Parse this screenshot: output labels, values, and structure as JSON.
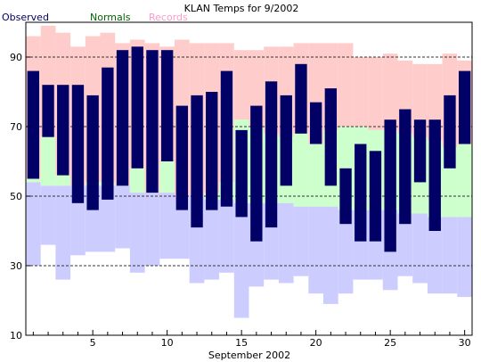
{
  "chart_data": {
    "type": "bar",
    "title": "KLAN Temps for 9/2002",
    "xlabel": "September 2002",
    "ylabel": "",
    "legend": {
      "placement": "top-left",
      "items": [
        {
          "name": "Observed",
          "color": "#000066"
        },
        {
          "name": "Normals",
          "color": "#006600"
        },
        {
          "name": "Records",
          "color": "#ff99cc"
        }
      ]
    },
    "xlim": [
      0.5,
      30.5
    ],
    "ylim": [
      10,
      100
    ],
    "x_ticks": [
      5,
      10,
      15,
      20,
      25,
      30
    ],
    "y_ticks": [
      10,
      30,
      50,
      70,
      90
    ],
    "dashed_gridlines": [
      30,
      50,
      70,
      90
    ],
    "colors": {
      "records": "#ffcccc",
      "normals": "#ccffcc",
      "lower": "#ccccff",
      "observed": "#000066",
      "grid": "#333333"
    },
    "days": [
      1,
      2,
      3,
      4,
      5,
      6,
      7,
      8,
      9,
      10,
      11,
      12,
      13,
      14,
      15,
      16,
      17,
      18,
      19,
      20,
      21,
      22,
      23,
      24,
      25,
      26,
      27,
      28,
      29,
      30
    ],
    "series": [
      {
        "name": "Record High",
        "values": [
          96,
          99,
          97,
          93,
          96,
          97,
          94,
          95,
          94,
          93,
          95,
          94,
          94,
          94,
          92,
          92,
          93,
          93,
          94,
          94,
          94,
          94,
          90,
          90,
          91,
          89,
          88,
          88,
          91,
          89
        ]
      },
      {
        "name": "Normal High",
        "values": [
          55,
          67,
          56,
          53,
          54,
          54,
          53,
          58,
          51,
          60,
          50,
          50,
          51,
          54,
          72,
          70,
          68,
          67,
          68,
          65,
          69,
          70,
          70,
          69,
          69,
          68,
          67,
          66,
          64,
          65
        ]
      },
      {
        "name": "Normal Low",
        "values": [
          54,
          53,
          53,
          53,
          53,
          53,
          53,
          51,
          51,
          51,
          50,
          50,
          49,
          49,
          48,
          48,
          48,
          48,
          47,
          47,
          47,
          46,
          46,
          46,
          46,
          45,
          45,
          44,
          44,
          44
        ]
      },
      {
        "name": "Record Low",
        "values": [
          30,
          36,
          26,
          33,
          34,
          34,
          35,
          28,
          30,
          32,
          32,
          25,
          26,
          28,
          15,
          24,
          26,
          25,
          27,
          22,
          19,
          22,
          26,
          26,
          23,
          27,
          25,
          22,
          22,
          21
        ]
      },
      {
        "name": "Observed High",
        "values": [
          86,
          82,
          82,
          82,
          79,
          87,
          92,
          93,
          92,
          92,
          76,
          79,
          80,
          86,
          69,
          76,
          83,
          79,
          88,
          77,
          81,
          58,
          65,
          63,
          72,
          75,
          72,
          72,
          79,
          86
        ]
      },
      {
        "name": "Observed Low",
        "values": [
          55,
          67,
          56,
          48,
          46,
          49,
          53,
          58,
          51,
          60,
          46,
          41,
          46,
          47,
          44,
          37,
          41,
          53,
          68,
          65,
          53,
          42,
          37,
          37,
          34,
          42,
          54,
          40,
          58,
          65
        ]
      }
    ]
  }
}
